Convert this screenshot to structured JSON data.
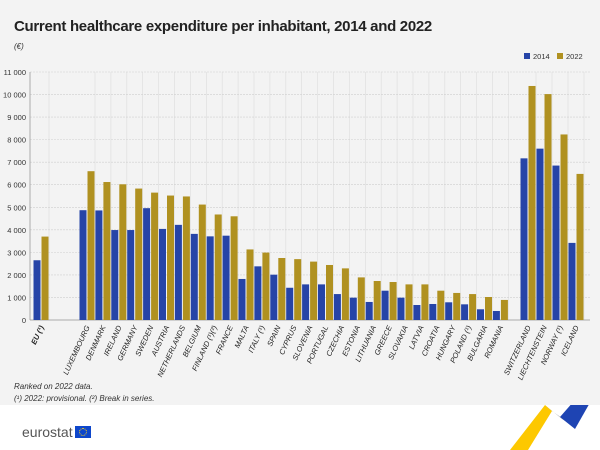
{
  "chart_data": {
    "type": "bar",
    "title": "Current healthcare expenditure per inhabitant, 2014 and 2022",
    "unit": "(€)",
    "ylim": [
      0,
      11000
    ],
    "yticks": [
      0,
      1000,
      2000,
      3000,
      4000,
      5000,
      6000,
      7000,
      8000,
      9000,
      10000,
      11000
    ],
    "ytick_labels": [
      "0",
      "1 000",
      "2 000",
      "3 000",
      "4 000",
      "5 000",
      "6 000",
      "7 000",
      "8 000",
      "9 000",
      "10 000",
      "11 000"
    ],
    "grid": true,
    "legend_position": "top-right",
    "categories": [
      "EU (¹)",
      "LUXEMBOURG",
      "DENMARK",
      "IRELAND",
      "GERMANY",
      "SWEDEN",
      "AUSTRIA",
      "NETHERLANDS",
      "BELGIUM",
      "FINLAND (¹)(²)",
      "FRANCE",
      "MALTA",
      "ITALY (¹)",
      "SPAIN",
      "CYPRUS",
      "SLOVENIA",
      "PORTUGAL",
      "CZECHIA",
      "ESTONIA",
      "LITHUANIA",
      "GREECE",
      "SLOVAKIA",
      "LATVIA",
      "CROATIA",
      "HUNGARY",
      "POLAND (¹)",
      "BULGARIA",
      "ROMANIA",
      "SWITZERLAND",
      "LIECHTENSTEIN",
      "NORWAY (¹)",
      "ICELAND"
    ],
    "groups": {
      "eu": [
        0
      ],
      "members": [
        1,
        27
      ],
      "efta": [
        28,
        31
      ]
    },
    "series": [
      {
        "name": "2014",
        "color": "#2644a7",
        "values": [
          2650,
          4870,
          4860,
          3990,
          3990,
          4960,
          4040,
          4220,
          3820,
          3710,
          3740,
          1820,
          2380,
          2010,
          1430,
          1580,
          1580,
          1150,
          990,
          800,
          1300,
          990,
          665,
          710,
          785,
          695,
          475,
          400,
          7170,
          7600,
          6850,
          3420
        ]
      },
      {
        "name": "2022",
        "color": "#b09120",
        "values": [
          3700,
          6600,
          6120,
          6020,
          5830,
          5650,
          5520,
          5480,
          5120,
          4680,
          4600,
          3130,
          2990,
          2750,
          2700,
          2590,
          2440,
          2290,
          1890,
          1730,
          1685,
          1580,
          1580,
          1300,
          1200,
          1150,
          1020,
          890,
          10380,
          10020,
          8230,
          6480
        ]
      }
    ]
  },
  "notes": {
    "ranking": "Ranked on 2022 data.",
    "footnotes": "(¹) 2022: provisional. (²) Break in series."
  },
  "brand": {
    "logo_text": "eurostat"
  }
}
